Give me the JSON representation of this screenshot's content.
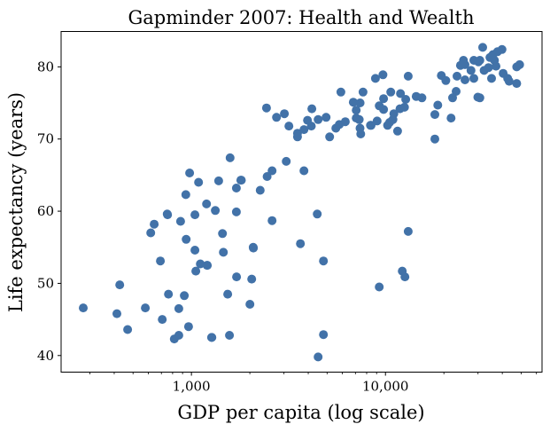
{
  "chart_data": {
    "type": "scatter",
    "title": "Gapminder 2007: Health and Wealth",
    "xlabel": "GDP per capita (log scale)",
    "ylabel": "Life expectancy (years)",
    "xscale": "log",
    "xlim": [
      213,
      64100
    ],
    "ylim": [
      37.7,
      84.9
    ],
    "x_ticks": [
      1000,
      10000
    ],
    "x_tick_labels": [
      "1,000",
      "10,000"
    ],
    "y_ticks": [
      40,
      50,
      60,
      70,
      80
    ],
    "y_tick_labels": [
      "40",
      "50",
      "60",
      "70",
      "80"
    ],
    "grid": false,
    "marker_color": "#4272a8",
    "points": [
      [
        277,
        46.6
      ],
      [
        427,
        49.8
      ],
      [
        413,
        45.8
      ],
      [
        469,
        43.6
      ],
      [
        579,
        46.6
      ],
      [
        707,
        45.0
      ],
      [
        692,
        53.1
      ],
      [
        761,
        48.5
      ],
      [
        919,
        48.3
      ],
      [
        861,
        46.5
      ],
      [
        966,
        44.0
      ],
      [
        816,
        42.3
      ],
      [
        861,
        42.8
      ],
      [
        1270,
        42.5
      ],
      [
        617,
        57.0
      ],
      [
        643,
        58.2
      ],
      [
        753,
        59.5
      ],
      [
        879,
        58.6
      ],
      [
        1043,
        59.5
      ],
      [
        939,
        56.1
      ],
      [
        1043,
        54.6
      ],
      [
        1111,
        52.7
      ],
      [
        1208,
        52.5
      ],
      [
        1054,
        51.7
      ],
      [
        1583,
        67.4
      ],
      [
        979,
        65.3
      ],
      [
        1088,
        64.0
      ],
      [
        1381,
        64.2
      ],
      [
        1796,
        64.3
      ],
      [
        1705,
        63.2
      ],
      [
        936,
        62.3
      ],
      [
        1196,
        61.0
      ],
      [
        1328,
        60.1
      ],
      [
        1705,
        59.9
      ],
      [
        1445,
        56.9
      ],
      [
        2081,
        55.0
      ],
      [
        1460,
        54.3
      ],
      [
        1709,
        50.9
      ],
      [
        2044,
        50.6
      ],
      [
        1538,
        48.5
      ],
      [
        2002,
        47.1
      ],
      [
        1571,
        42.8
      ],
      [
        2604,
        58.7
      ],
      [
        4449,
        59.6
      ],
      [
        3644,
        55.5
      ],
      [
        4790,
        53.1
      ],
      [
        4790,
        42.9
      ],
      [
        4499,
        39.8
      ],
      [
        9290,
        49.5
      ],
      [
        12210,
        51.7
      ],
      [
        12600,
        50.9
      ],
      [
        13100,
        57.2
      ],
      [
        3080,
        66.9
      ],
      [
        2604,
        65.6
      ],
      [
        2455,
        64.8
      ],
      [
        3800,
        65.6
      ],
      [
        1808,
        64.3
      ],
      [
        2263,
        62.9
      ],
      [
        2437,
        74.3
      ],
      [
        2745,
        73.0
      ],
      [
        3015,
        73.5
      ],
      [
        3178,
        71.8
      ],
      [
        3520,
        70.8
      ],
      [
        3520,
        70.3
      ],
      [
        3800,
        71.3
      ],
      [
        3963,
        72.6
      ],
      [
        4174,
        74.2
      ],
      [
        4148,
        71.8
      ],
      [
        4497,
        72.7
      ],
      [
        4945,
        73.0
      ],
      [
        5156,
        70.3
      ],
      [
        5549,
        71.5
      ],
      [
        5783,
        72.0
      ],
      [
        6210,
        72.4
      ],
      [
        5894,
        76.5
      ],
      [
        6826,
        75.1
      ],
      [
        7398,
        75.0
      ],
      [
        7066,
        74.0
      ],
      [
        7066,
        72.9
      ],
      [
        7327,
        72.7
      ],
      [
        7390,
        71.5
      ],
      [
        7458,
        70.7
      ],
      [
        7663,
        76.5
      ],
      [
        8434,
        71.9
      ],
      [
        9060,
        72.5
      ],
      [
        9780,
        75.6
      ],
      [
        9290,
        74.6
      ],
      [
        9780,
        74.1
      ],
      [
        8880,
        78.4
      ],
      [
        9710,
        78.9
      ],
      [
        13100,
        78.7
      ],
      [
        10650,
        76.5
      ],
      [
        11950,
        76.3
      ],
      [
        12720,
        75.5
      ],
      [
        14390,
        75.9
      ],
      [
        15420,
        75.7
      ],
      [
        10500,
        72.3
      ],
      [
        10250,
        71.9
      ],
      [
        10930,
        72.7
      ],
      [
        11050,
        73.5
      ],
      [
        11540,
        71.1
      ],
      [
        11880,
        74.2
      ],
      [
        12530,
        74.4
      ],
      [
        8370,
        71.9
      ],
      [
        19400,
        78.8
      ],
      [
        20470,
        78.1
      ],
      [
        23360,
        78.7
      ],
      [
        23120,
        76.6
      ],
      [
        22170,
        75.7
      ],
      [
        18600,
        74.7
      ],
      [
        17980,
        73.4
      ],
      [
        21780,
        72.9
      ],
      [
        17980,
        70.0
      ],
      [
        24360,
        80.2
      ],
      [
        25240,
        80.9
      ],
      [
        25680,
        80.3
      ],
      [
        28540,
        80.9
      ],
      [
        30130,
        80.7
      ],
      [
        27600,
        79.5
      ],
      [
        25680,
        78.2
      ],
      [
        28540,
        78.4
      ],
      [
        29920,
        75.8
      ],
      [
        31690,
        82.7
      ],
      [
        39870,
        82.4
      ],
      [
        37790,
        82.1
      ],
      [
        35800,
        81.7
      ],
      [
        34560,
        81.3
      ],
      [
        36440,
        80.9
      ],
      [
        30660,
        80.9
      ],
      [
        37120,
        80.1
      ],
      [
        33960,
        79.9
      ],
      [
        32220,
        79.5
      ],
      [
        49130,
        80.3
      ],
      [
        47470,
        80.0
      ],
      [
        40430,
        79.1
      ],
      [
        42640,
        78.4
      ],
      [
        43390,
        78.0
      ],
      [
        35200,
        78.4
      ],
      [
        47470,
        77.7
      ],
      [
        30660,
        75.7
      ],
      [
        2087,
        54.9
      ],
      [
        1204,
        52.5
      ],
      [
        1274,
        42.5
      ],
      [
        750,
        59.6
      ]
    ]
  }
}
